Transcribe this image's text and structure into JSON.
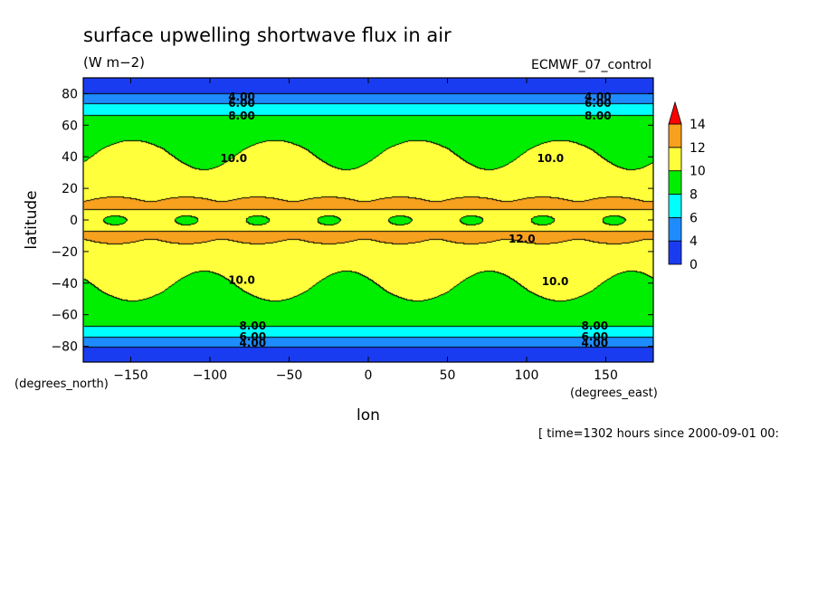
{
  "chart_data": {
    "type": "heatmap",
    "title": "surface upwelling shortwave flux in air",
    "units": "(W m−2)",
    "dataset": "ECMWF_07_control",
    "xlabel": "lon",
    "ylabel": "latitude",
    "x_units": "(degrees_east)",
    "y_units": "(degrees_north)",
    "footer": "[ time=1302 hours since 2000-09-01 00:",
    "xlim": [
      -180,
      180
    ],
    "ylim": [
      -90,
      90
    ],
    "x_ticks": [
      -150,
      -100,
      -50,
      0,
      50,
      100,
      150
    ],
    "x_tick_labels": [
      "−150",
      "−100",
      "−50",
      "0",
      "50",
      "100",
      "150"
    ],
    "y_ticks": [
      80,
      60,
      40,
      20,
      0,
      -20,
      -40,
      -60,
      -80
    ],
    "y_tick_labels": [
      "80",
      "60",
      "40",
      "20",
      "0",
      "−20",
      "−40",
      "−60",
      "−80"
    ],
    "color_levels": [
      0,
      2,
      4,
      6,
      8,
      10,
      12,
      14
    ],
    "colorbar_labels": [
      "0",
      "4",
      "6",
      "8",
      "10",
      "12",
      "14"
    ],
    "colors": [
      "#1a3cf0",
      "#1a3cf0",
      "#1e8cff",
      "#00ffff",
      "#00ee00",
      "#ffff3c",
      "#f7a11e",
      "#ff0000"
    ],
    "contour_labels": [
      {
        "text": "4.00",
        "lon": -80,
        "lat": 78
      },
      {
        "text": "6.00",
        "lon": -80,
        "lat": 74
      },
      {
        "text": "8.00",
        "lon": -80,
        "lat": 66
      },
      {
        "text": "4.00",
        "lon": 145,
        "lat": 78
      },
      {
        "text": "6.00",
        "lon": 145,
        "lat": 74
      },
      {
        "text": "8.00",
        "lon": 145,
        "lat": 66
      },
      {
        "text": "10.0",
        "lon": -85,
        "lat": 39
      },
      {
        "text": "10.0",
        "lon": 115,
        "lat": 39
      },
      {
        "text": "12.0",
        "lon": 97,
        "lat": -12
      },
      {
        "text": "10.0",
        "lon": -80,
        "lat": -38
      },
      {
        "text": "10.0",
        "lon": 118,
        "lat": -39
      },
      {
        "text": "8.00",
        "lon": -73,
        "lat": -67
      },
      {
        "text": "6.00",
        "lon": -73,
        "lat": -74
      },
      {
        "text": "4.00",
        "lon": -73,
        "lat": -78
      },
      {
        "text": "8.00",
        "lon": 143,
        "lat": -67
      },
      {
        "text": "6.00",
        "lon": 143,
        "lat": -74
      },
      {
        "text": "4.00",
        "lon": 143,
        "lat": -78
      }
    ],
    "zonal_profile": {
      "lat": [
        -90,
        -82,
        -78,
        -74,
        -70,
        -66,
        -45,
        -30,
        -15,
        -8,
        -3,
        3,
        8,
        15,
        30,
        45,
        65,
        70,
        74,
        78,
        82,
        90
      ],
      "value": [
        2.5,
        3.5,
        4.5,
        6.0,
        7.0,
        8.5,
        9.9,
        10.6,
        11.4,
        12.2,
        10.8,
        10.8,
        12.2,
        11.4,
        10.6,
        9.9,
        8.5,
        7.0,
        6.0,
        4.5,
        3.5,
        2.5
      ]
    },
    "high_cells": [
      {
        "lon": -160,
        "lat": 12,
        "value": 12.4
      },
      {
        "lon": -115,
        "lat": 12,
        "value": 12.4
      },
      {
        "lon": -70,
        "lat": 12,
        "value": 12.4
      },
      {
        "lon": -25,
        "lat": 12,
        "value": 12.4
      },
      {
        "lon": 20,
        "lat": 12,
        "value": 12.4
      },
      {
        "lon": 65,
        "lat": 12,
        "value": 12.4
      },
      {
        "lon": 110,
        "lat": 12,
        "value": 12.4
      },
      {
        "lon": 155,
        "lat": 12,
        "value": 12.4
      },
      {
        "lon": -160,
        "lat": -12,
        "value": 12.5
      },
      {
        "lon": -115,
        "lat": -12,
        "value": 12.5
      },
      {
        "lon": -70,
        "lat": -12,
        "value": 12.5
      },
      {
        "lon": -25,
        "lat": -12,
        "value": 12.5
      },
      {
        "lon": 20,
        "lat": -12,
        "value": 12.5
      },
      {
        "lon": 65,
        "lat": -12,
        "value": 12.5
      },
      {
        "lon": 110,
        "lat": -12,
        "value": 12.5
      },
      {
        "lon": 155,
        "lat": -12,
        "value": 12.5
      }
    ],
    "low_cells": [
      {
        "lon": -160,
        "lat": 0,
        "value": 9.2
      },
      {
        "lon": -115,
        "lat": 0,
        "value": 9.2
      },
      {
        "lon": -70,
        "lat": 0,
        "value": 9.2
      },
      {
        "lon": -25,
        "lat": 0,
        "value": 9.2
      },
      {
        "lon": 20,
        "lat": 0,
        "value": 9.2
      },
      {
        "lon": 65,
        "lat": 0,
        "value": 9.2
      },
      {
        "lon": 110,
        "lat": 0,
        "value": 9.2
      },
      {
        "lon": 155,
        "lat": 0,
        "value": 9.2
      }
    ]
  }
}
